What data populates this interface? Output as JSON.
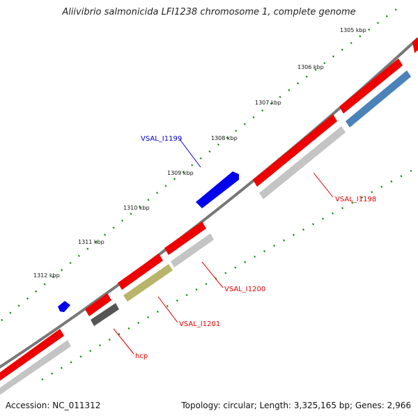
{
  "title": "Aliivibrio salmonicida LFI1238 chromosome 1, complete genome",
  "accession": "Accession: NC_011312",
  "summary": "Topology: circular; Length: 3,325,165 bp; Genes: 2,966",
  "ticks": [
    "1305 kbp",
    "1306 kbp",
    "1307 kbp",
    "1308 kbp",
    "1309 kbp",
    "1310 kbp",
    "1311 kbp",
    "1312 kbp"
  ],
  "gene_labels": {
    "vsal_i1199": "VSAL_I1199",
    "vsal_i1198": "VSAL_I1198",
    "vsal_i1200": "VSAL_I1200",
    "vsal_i1201": "VSAL_I1201",
    "hcp": "hcp"
  },
  "colors": {
    "backbone": "#777777",
    "gene_red": "#ee0000",
    "gene_blue": "#0000ee",
    "gene_grey": "#c4c4c4",
    "gene_steelblue": "#4b82b8",
    "gene_olive": "#b8b46a",
    "gene_darkgrey": "#555555",
    "tick_green": "#118811",
    "label_red": "#dd0000",
    "label_blue": "#0000cc"
  }
}
